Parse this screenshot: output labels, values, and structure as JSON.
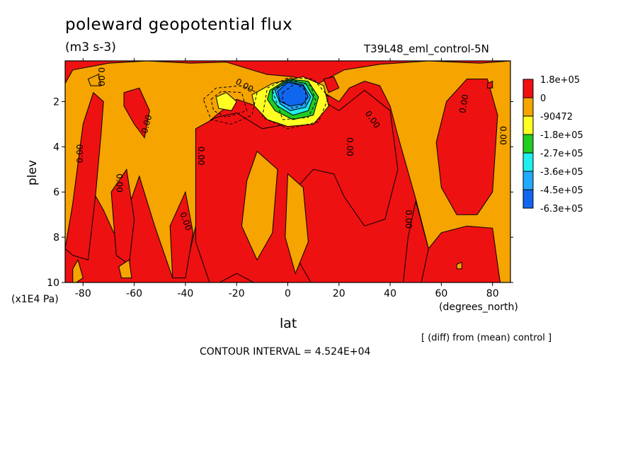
{
  "chart_data": {
    "type": "heatmap",
    "title": "poleward geopotential flux",
    "units": "(m3 s-3)",
    "run_label": "T39L48_eml_control-5N",
    "xlabel": "lat",
    "xunit": "(degrees_north)",
    "ylabel": "plev",
    "yunit": "(x1E4 Pa)",
    "xlim": [
      -87,
      87
    ],
    "ylim": [
      10,
      0.2
    ],
    "xticks": [
      "-80",
      "-60",
      "-40",
      "-20",
      "0",
      "20",
      "40",
      "60",
      "80"
    ],
    "yticks": [
      "2",
      "4",
      "6",
      "8",
      "10"
    ],
    "contour_interval": "CONTOUR INTERVAL = 4.524E+04",
    "diff_note": "[ (diff) from (mean) control ]",
    "contour_label": "0.00",
    "colorbar": {
      "levels": [
        "1.8e+05",
        "0",
        "-90472",
        "-1.8e+05",
        "-2.7e+05",
        "-3.6e+05",
        "-4.5e+05",
        "-6.3e+05"
      ],
      "colors": [
        "#ee1111",
        "#f5a400",
        "#ffff22",
        "#22cc22",
        "#22eeee",
        "#22aaff",
        "#1166ee"
      ]
    },
    "min_region": {
      "lat": 5,
      "plev": 1.6,
      "level": "-6.3e+05"
    }
  }
}
